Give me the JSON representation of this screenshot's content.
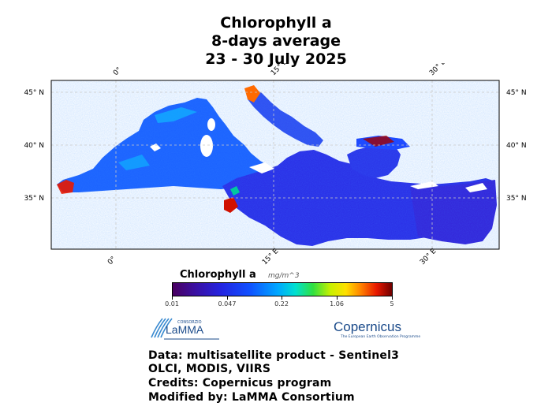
{
  "title": {
    "line1": "Chlorophyll a",
    "line2": "8-days average",
    "line3": "23 - 30 July 2025"
  },
  "map": {
    "lat_labels": [
      "45° N",
      "40° N",
      "35° N"
    ],
    "lon_labels": [
      "0°",
      "15° E",
      "30° E"
    ],
    "colors": {
      "sea_low": "#2a20e0",
      "sea_mid": "#1a6aff",
      "coastal_high": "#e81800",
      "land": "#ffffff",
      "grid": "#c8c8c8"
    }
  },
  "colorbar": {
    "title": "Chlorophyll a",
    "unit": "mg/m^3",
    "ticks": [
      "0.01",
      "0.047",
      "0.22",
      "1.06",
      "5"
    ]
  },
  "logos": {
    "lamma_small": "CONSORZIO",
    "lamma": "LaMMA",
    "copernicus": "Copernicus",
    "copernicus_sub": "The European Earth Observation Programme"
  },
  "info": {
    "line1": "Data: multisatellite product  -  Sentinel3",
    "line2": "OLCI, MODIS, VIIRS",
    "line3": "Credits: Copernicus program",
    "line4": "Modified by: LaMMA Consortium"
  }
}
